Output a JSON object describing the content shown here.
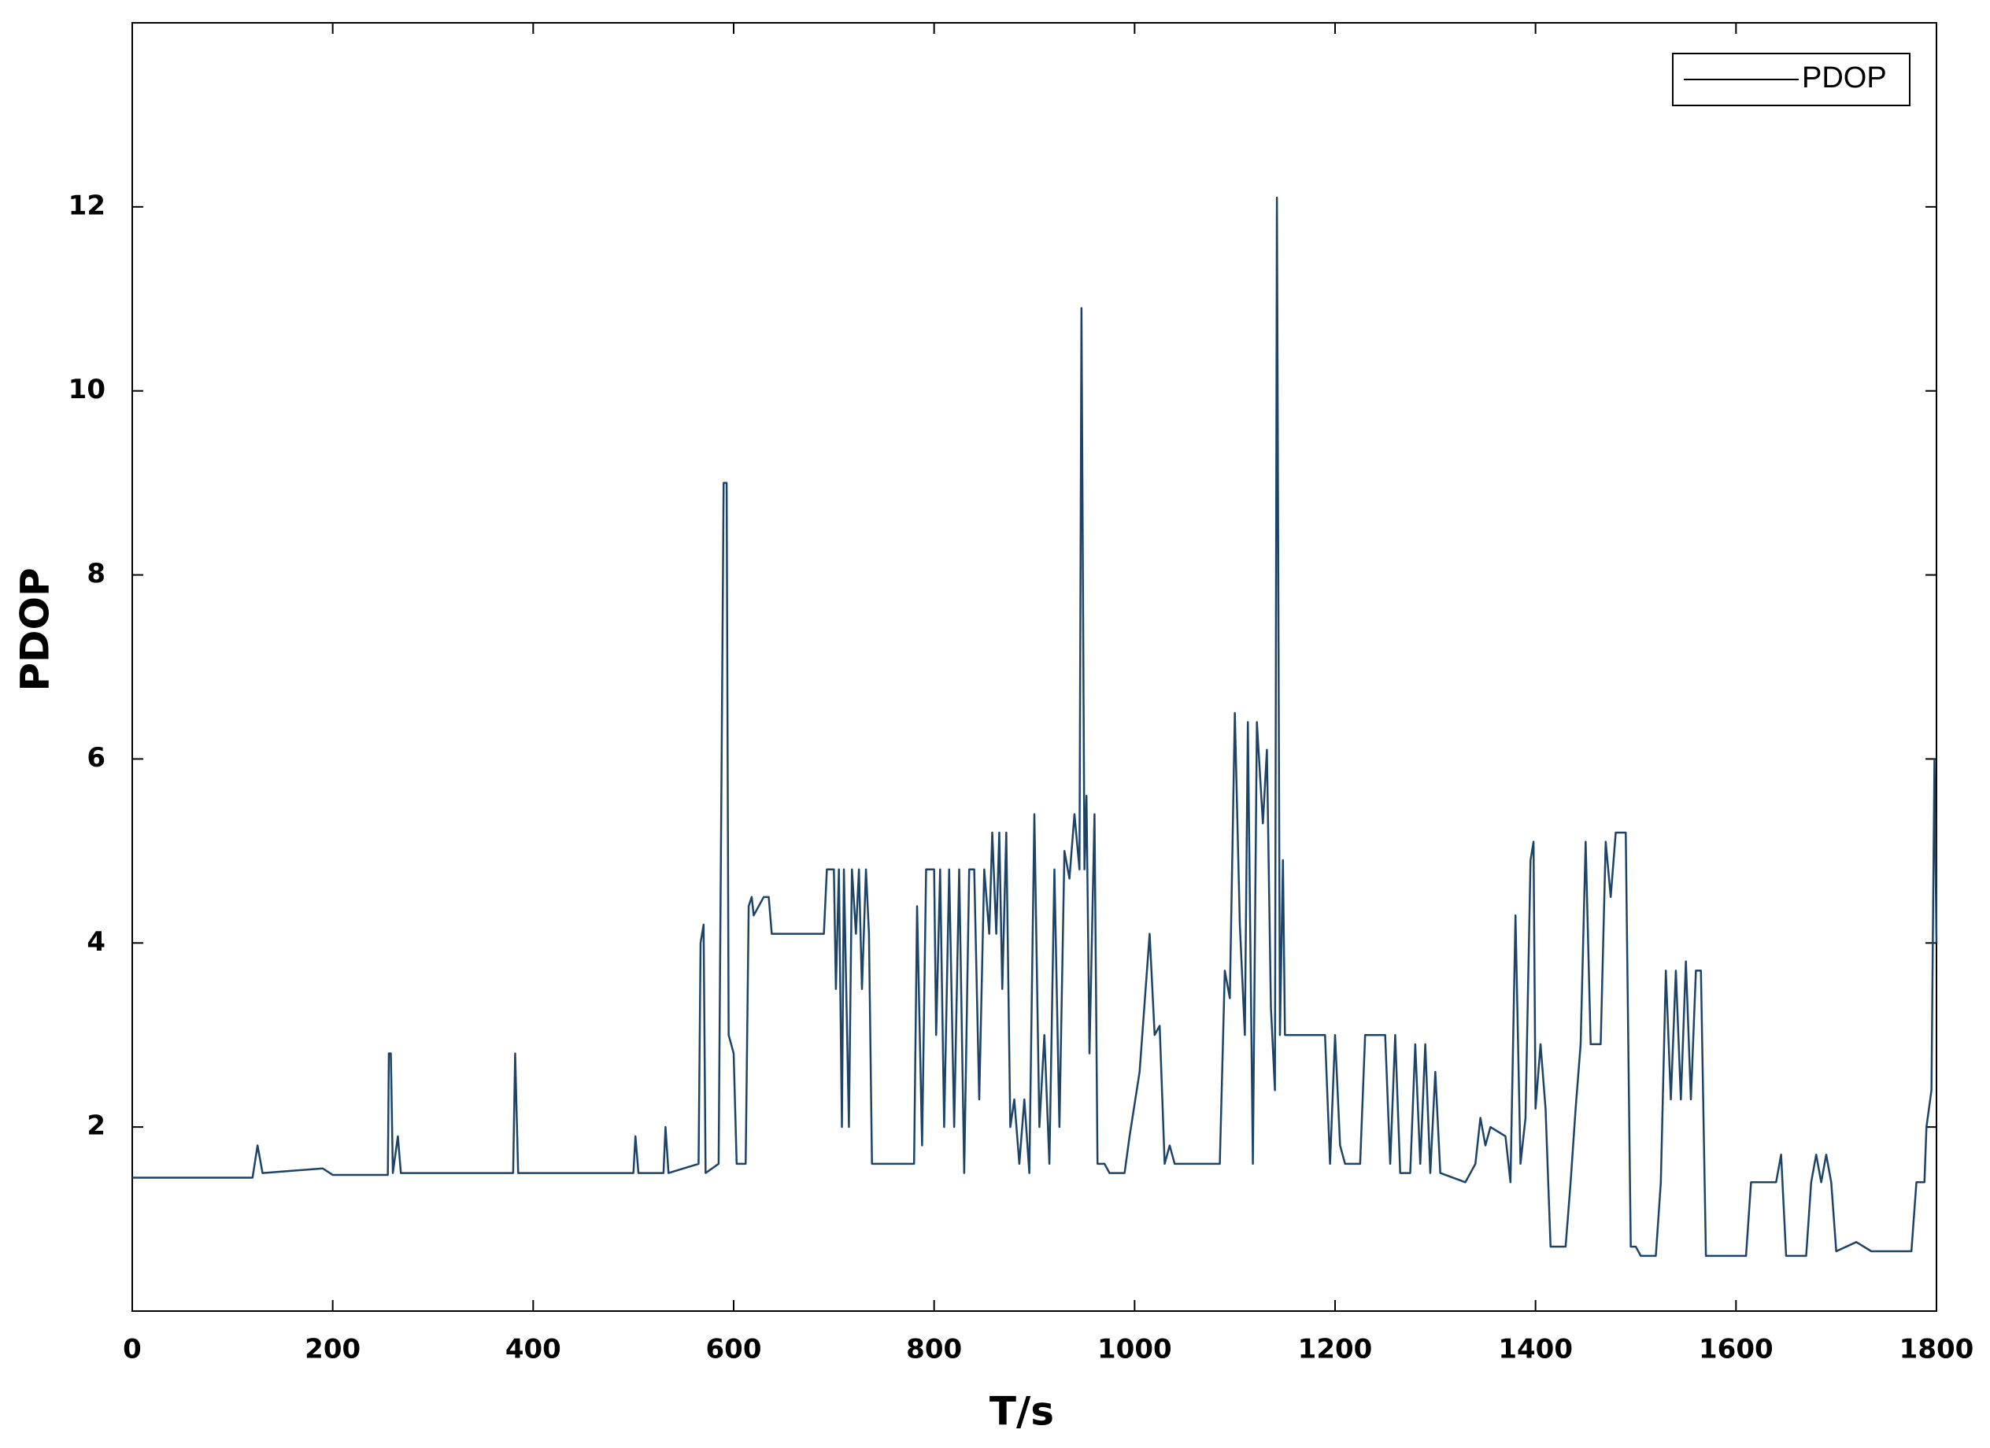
{
  "chart_data": {
    "type": "line",
    "x_label": "T/s",
    "y_label": "PDOP",
    "x": [
      0,
      120,
      125,
      130,
      190,
      200,
      255,
      256,
      258,
      260,
      265,
      268,
      380,
      382,
      385,
      500,
      502,
      505,
      530,
      532,
      535,
      565,
      567,
      570,
      572,
      585,
      588,
      590,
      593,
      595,
      600,
      603,
      612,
      615,
      618,
      620,
      630,
      635,
      638,
      690,
      693,
      700,
      702,
      705,
      708,
      710,
      715,
      718,
      722,
      725,
      728,
      732,
      735,
      738,
      780,
      783,
      788,
      792,
      800,
      802,
      806,
      810,
      815,
      820,
      825,
      830,
      835,
      840,
      845,
      850,
      855,
      858,
      862,
      865,
      868,
      872,
      876,
      880,
      885,
      890,
      895,
      900,
      905,
      910,
      915,
      920,
      925,
      930,
      935,
      940,
      945,
      947,
      950,
      952,
      955,
      960,
      963,
      970,
      975,
      990,
      995,
      1005,
      1015,
      1020,
      1025,
      1030,
      1035,
      1040,
      1085,
      1090,
      1095,
      1100,
      1105,
      1110,
      1113,
      1118,
      1122,
      1128,
      1132,
      1136,
      1140,
      1142,
      1145,
      1148,
      1150,
      1190,
      1195,
      1200,
      1205,
      1210,
      1225,
      1230,
      1250,
      1255,
      1260,
      1265,
      1275,
      1280,
      1285,
      1290,
      1295,
      1300,
      1305,
      1330,
      1340,
      1345,
      1350,
      1355,
      1370,
      1375,
      1380,
      1385,
      1390,
      1395,
      1398,
      1400,
      1405,
      1410,
      1415,
      1430,
      1435,
      1440,
      1445,
      1450,
      1455,
      1465,
      1470,
      1475,
      1480,
      1490,
      1495,
      1500,
      1505,
      1520,
      1525,
      1530,
      1535,
      1540,
      1545,
      1550,
      1555,
      1560,
      1565,
      1570,
      1610,
      1615,
      1640,
      1645,
      1650,
      1670,
      1675,
      1680,
      1685,
      1690,
      1695,
      1700,
      1720,
      1735,
      1775,
      1780,
      1788,
      1790,
      1795,
      1798,
      1800
    ],
    "series": [
      {
        "name": "PDOP",
        "color": "#1d4467",
        "values": [
          1.45,
          1.45,
          1.8,
          1.5,
          1.55,
          1.48,
          1.48,
          2.8,
          2.8,
          1.5,
          1.9,
          1.5,
          1.5,
          2.8,
          1.5,
          1.5,
          1.9,
          1.5,
          1.5,
          2.0,
          1.5,
          1.6,
          4.0,
          4.2,
          1.5,
          1.6,
          6.0,
          9.0,
          9.0,
          3.0,
          2.8,
          1.6,
          1.6,
          4.4,
          4.5,
          4.3,
          4.5,
          4.5,
          4.1,
          4.1,
          4.8,
          4.8,
          3.5,
          4.8,
          2.0,
          4.8,
          2.0,
          4.8,
          4.1,
          4.8,
          3.5,
          4.8,
          4.1,
          1.6,
          1.6,
          4.4,
          1.8,
          4.8,
          4.8,
          3.0,
          4.8,
          2.0,
          4.8,
          2.0,
          4.8,
          1.5,
          4.8,
          4.8,
          2.3,
          4.8,
          4.1,
          5.2,
          4.1,
          5.2,
          3.5,
          5.2,
          2.0,
          2.3,
          1.6,
          2.3,
          1.5,
          5.4,
          2.0,
          3.0,
          1.6,
          4.8,
          2.0,
          5.0,
          4.7,
          5.4,
          4.8,
          10.9,
          4.8,
          5.6,
          2.8,
          5.4,
          1.6,
          1.6,
          1.5,
          1.5,
          1.9,
          2.6,
          4.1,
          3.0,
          3.1,
          1.6,
          1.8,
          1.6,
          1.6,
          3.7,
          3.4,
          6.5,
          4.2,
          3.0,
          6.4,
          1.6,
          6.4,
          5.3,
          6.1,
          3.3,
          2.4,
          12.1,
          3.0,
          4.9,
          3.0,
          3.0,
          1.6,
          3.0,
          1.8,
          1.6,
          1.6,
          3.0,
          3.0,
          1.6,
          3.0,
          1.5,
          1.5,
          2.9,
          1.6,
          2.9,
          1.5,
          2.6,
          1.5,
          1.4,
          1.6,
          2.1,
          1.8,
          2.0,
          1.9,
          1.4,
          4.3,
          1.6,
          2.1,
          4.9,
          5.1,
          2.2,
          2.9,
          2.2,
          0.7,
          0.7,
          1.4,
          2.2,
          2.9,
          5.1,
          2.9,
          2.9,
          5.1,
          4.5,
          5.2,
          5.2,
          0.7,
          0.7,
          0.6,
          0.6,
          1.4,
          3.7,
          2.3,
          3.7,
          2.3,
          3.8,
          2.3,
          3.7,
          3.7,
          0.6,
          0.6,
          1.4,
          1.4,
          1.7,
          0.6,
          0.6,
          1.4,
          1.7,
          1.4,
          1.7,
          1.4,
          0.65,
          0.75,
          0.65,
          0.65,
          1.4,
          1.4,
          2.0,
          2.4,
          6.0,
          4.0
        ]
      }
    ],
    "xlim": [
      0,
      1800
    ],
    "xticks": [
      0,
      200,
      400,
      600,
      800,
      1000,
      1200,
      1400,
      1600,
      1800
    ],
    "ylim": [
      0,
      14
    ],
    "yticks": [
      2,
      4,
      6,
      8,
      10,
      12
    ],
    "legend": "upper right",
    "grid": false
  }
}
